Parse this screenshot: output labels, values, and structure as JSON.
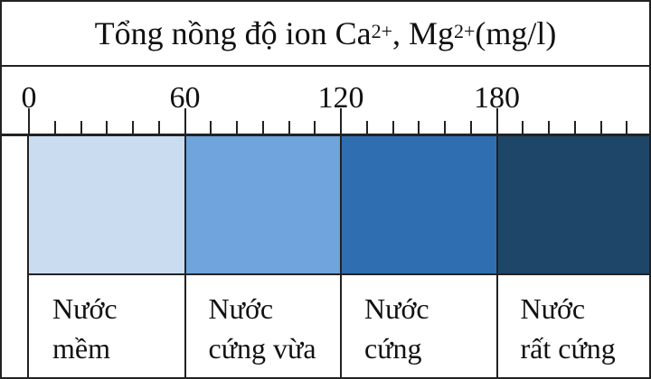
{
  "title": {
    "prefix": "Tổng nồng độ ion Ca",
    "ca_charge": "2+",
    "middle": ", Mg",
    "mg_charge": "2+",
    "unit": "(mg/l)"
  },
  "scale": {
    "min": 0,
    "max": 240,
    "major_ticks": [
      0,
      60,
      120,
      180
    ],
    "minor_step": 10
  },
  "categories": [
    {
      "from": 0,
      "to": 60,
      "line1": "Nước",
      "line2": "mềm",
      "color": "#c9dcf0"
    },
    {
      "from": 60,
      "to": 120,
      "line1": "Nước",
      "line2": "cứng vừa",
      "color": "#6fa4dc"
    },
    {
      "from": 120,
      "to": 180,
      "line1": "Nước",
      "line2": "cứng",
      "color": "#2f6fb1"
    },
    {
      "from": 180,
      "to": 240,
      "line1": "Nước",
      "line2": "rất cứng",
      "color": "#1d4668"
    }
  ]
}
